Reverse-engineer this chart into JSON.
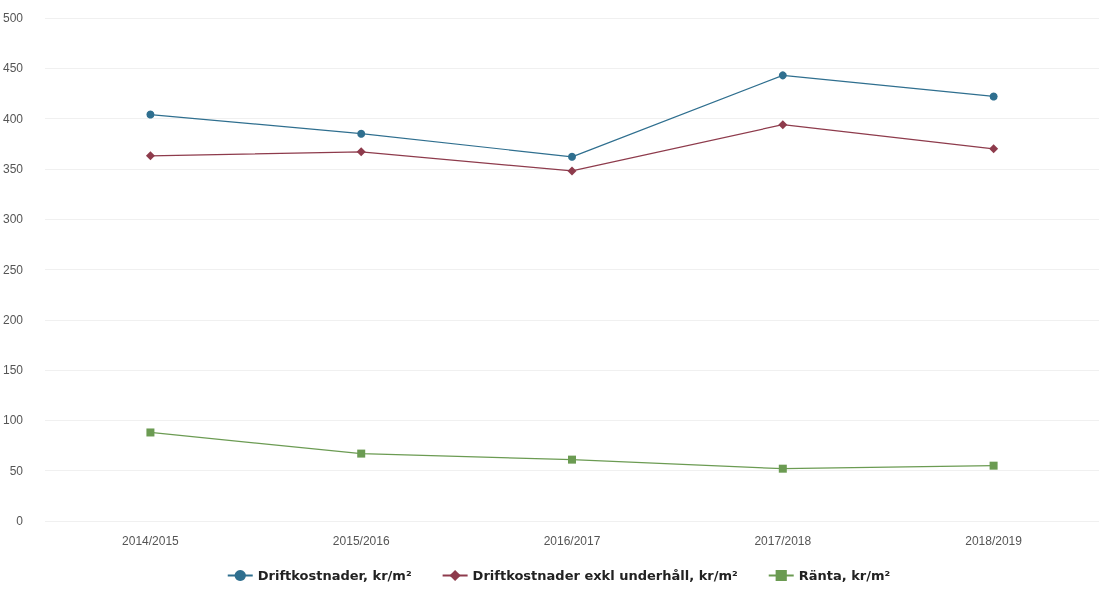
{
  "chart_data": {
    "type": "line",
    "categories": [
      "2014/2015",
      "2015/2016",
      "2016/2017",
      "2017/2018",
      "2018/2019"
    ],
    "series": [
      {
        "name": "Driftkostnader, kr/m²",
        "color": "#2f6f8f",
        "marker": "circle",
        "values": [
          404,
          385,
          362,
          443,
          422
        ]
      },
      {
        "name": "Driftkostnader exkl underhåll, kr/m²",
        "color": "#8e3b4c",
        "marker": "diamond",
        "values": [
          363,
          367,
          348,
          394,
          370
        ]
      },
      {
        "name": "Ränta, kr/m²",
        "color": "#6b9b52",
        "marker": "square",
        "values": [
          88,
          67,
          61,
          52,
          55
        ]
      }
    ],
    "ylim": [
      0,
      500
    ],
    "yticks": [
      0,
      50,
      100,
      150,
      200,
      250,
      300,
      350,
      400,
      450,
      500
    ],
    "grid": "y",
    "legend": "bottom"
  }
}
